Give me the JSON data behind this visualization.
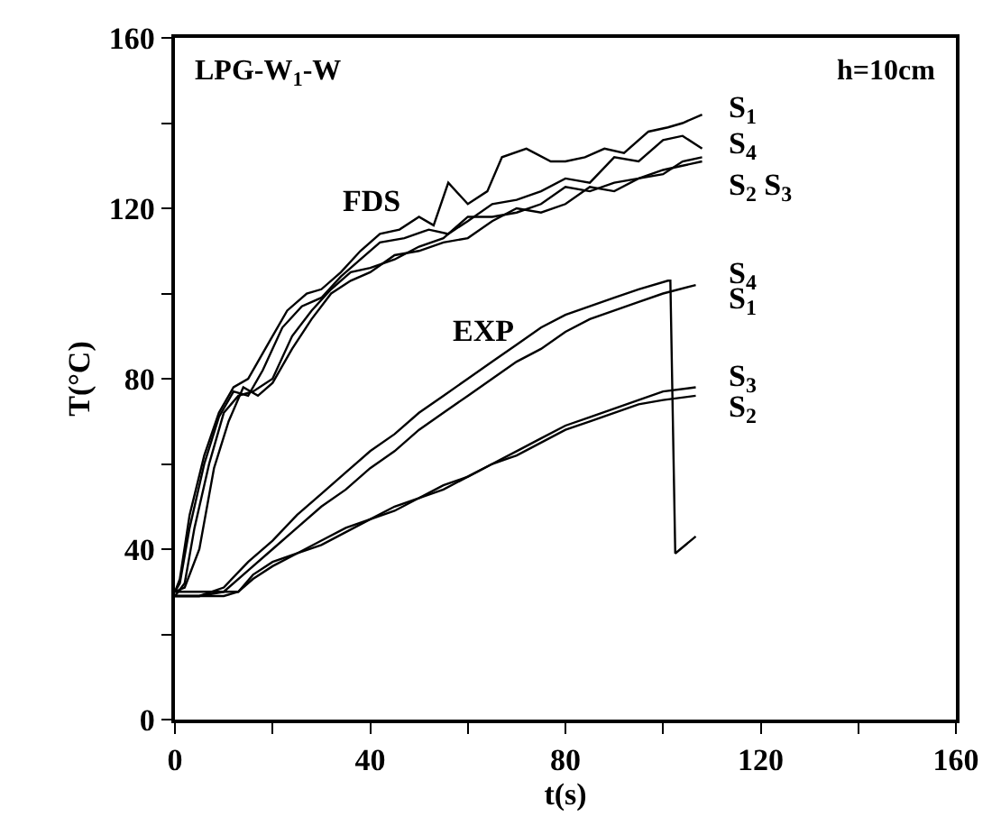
{
  "chart_data": {
    "type": "line",
    "xlabel": "t(s)",
    "ylabel": "T(°C)",
    "xlim": [
      0,
      160
    ],
    "ylim": [
      0,
      160
    ],
    "xticks": [
      0,
      {
        "value": 20,
        "label": null
      },
      40,
      {
        "value": 60,
        "label": null
      },
      80,
      {
        "value": 100,
        "label": null
      },
      120,
      {
        "value": 140,
        "label": null
      },
      160
    ],
    "yticks": [
      0,
      {
        "value": 20,
        "label": null
      },
      40,
      {
        "value": 60,
        "label": null
      },
      80,
      {
        "value": 100,
        "label": null
      },
      120,
      {
        "value": 140,
        "label": null
      },
      160
    ],
    "marker": "none",
    "line_style": "solid",
    "series": [
      {
        "color": "#000000",
        "x": [
          0,
          1,
          3,
          6,
          9,
          12,
          15,
          19,
          23,
          27,
          30,
          34,
          38,
          42,
          46,
          50,
          53,
          56,
          60,
          64,
          67,
          72,
          77,
          80,
          84,
          88,
          92,
          97,
          101,
          104,
          108
        ],
        "values": [
          30,
          33,
          48,
          62,
          72,
          78,
          80,
          88,
          96,
          100,
          101,
          105,
          110,
          114,
          115,
          118,
          116,
          126,
          121,
          124,
          132,
          134,
          131,
          131,
          132,
          134,
          133,
          138,
          139,
          140,
          142
        ]
      },
      {
        "color": "#000000",
        "x": [
          0,
          1,
          3,
          6,
          9,
          12,
          15,
          18,
          22,
          26,
          30,
          34,
          38,
          42,
          47,
          52,
          56,
          60,
          65,
          70,
          75,
          80,
          85,
          90,
          95,
          100,
          104,
          108
        ],
        "values": [
          30,
          32,
          45,
          60,
          71,
          77,
          76,
          82,
          92,
          97,
          99,
          104,
          108,
          112,
          113,
          115,
          114,
          117,
          121,
          122,
          124,
          127,
          126,
          132,
          131,
          136,
          137,
          134
        ]
      },
      {
        "color": "#000000",
        "x": [
          0,
          2,
          4,
          7,
          10,
          13,
          16,
          20,
          24,
          28,
          32,
          36,
          40,
          45,
          50,
          55,
          60,
          65,
          70,
          75,
          80,
          85,
          90,
          95,
          100,
          104,
          108
        ],
        "values": [
          29,
          32,
          45,
          60,
          72,
          76,
          77,
          80,
          90,
          96,
          101,
          105,
          106,
          108,
          111,
          113,
          118,
          118,
          119,
          121,
          125,
          124,
          126,
          127,
          129,
          130,
          131
        ]
      },
      {
        "color": "#000000",
        "x": [
          0,
          2,
          5,
          8,
          11,
          14,
          17,
          20,
          24,
          28,
          32,
          36,
          40,
          45,
          50,
          55,
          60,
          65,
          70,
          75,
          80,
          85,
          90,
          95,
          100,
          104,
          108
        ],
        "values": [
          30,
          31,
          40,
          59,
          70,
          78,
          76,
          79,
          87,
          94,
          100,
          103,
          105,
          109,
          110,
          112,
          113,
          117,
          120,
          119,
          121,
          125,
          124,
          127,
          128,
          131,
          132
        ]
      },
      {
        "color": "#000000",
        "x": [
          0,
          5,
          10,
          15,
          20,
          25,
          30,
          35,
          40,
          45,
          50,
          55,
          60,
          65,
          70,
          75,
          80,
          85,
          90,
          95,
          101,
          101.5,
          102.5,
          106.7
        ],
        "values": [
          29,
          29,
          31,
          37,
          42,
          48,
          53,
          58,
          63,
          67,
          72,
          76,
          80,
          84,
          88,
          92,
          95,
          97,
          99,
          101,
          103,
          103,
          39,
          43
        ]
      },
      {
        "color": "#000000",
        "x": [
          0,
          5,
          10,
          15,
          20,
          25,
          30,
          35,
          40,
          45,
          50,
          55,
          60,
          65,
          70,
          75,
          80,
          85,
          90,
          95,
          100,
          106.7
        ],
        "values": [
          29,
          29,
          30,
          35,
          40,
          45,
          50,
          54,
          59,
          63,
          68,
          72,
          76,
          80,
          84,
          87,
          91,
          94,
          96,
          98,
          100,
          102
        ]
      },
      {
        "color": "#000000",
        "x": [
          0,
          5,
          10,
          13,
          16,
          20,
          25,
          30,
          35,
          40,
          45,
          50,
          55,
          60,
          65,
          70,
          75,
          80,
          85,
          90,
          95,
          100,
          106.7
        ],
        "values": [
          30,
          30,
          30,
          30,
          34,
          37,
          39,
          41,
          44,
          47,
          50,
          52,
          55,
          57,
          60,
          63,
          66,
          69,
          71,
          73,
          75,
          77,
          78
        ]
      },
      {
        "color": "#000000",
        "x": [
          0,
          5,
          10,
          13,
          16,
          20,
          25,
          30,
          35,
          40,
          45,
          50,
          55,
          60,
          65,
          70,
          75,
          80,
          85,
          90,
          95,
          100,
          106.7
        ],
        "values": [
          29,
          29,
          29,
          30,
          33,
          36,
          39,
          42,
          45,
          47,
          49,
          52,
          54,
          57,
          60,
          62,
          65,
          68,
          70,
          72,
          74,
          75,
          76
        ]
      }
    ],
    "annotations": [
      "LPG-W$_{1}$-W",
      "h=10cm",
      "FDS",
      "EXP",
      "S$_{1}$",
      "S$_{4}$",
      "S$_{2}$ S$_{3}$",
      "S$_{4}$",
      "S$_{1}$",
      "S$_{3}$",
      "S$_{2}$"
    ]
  }
}
